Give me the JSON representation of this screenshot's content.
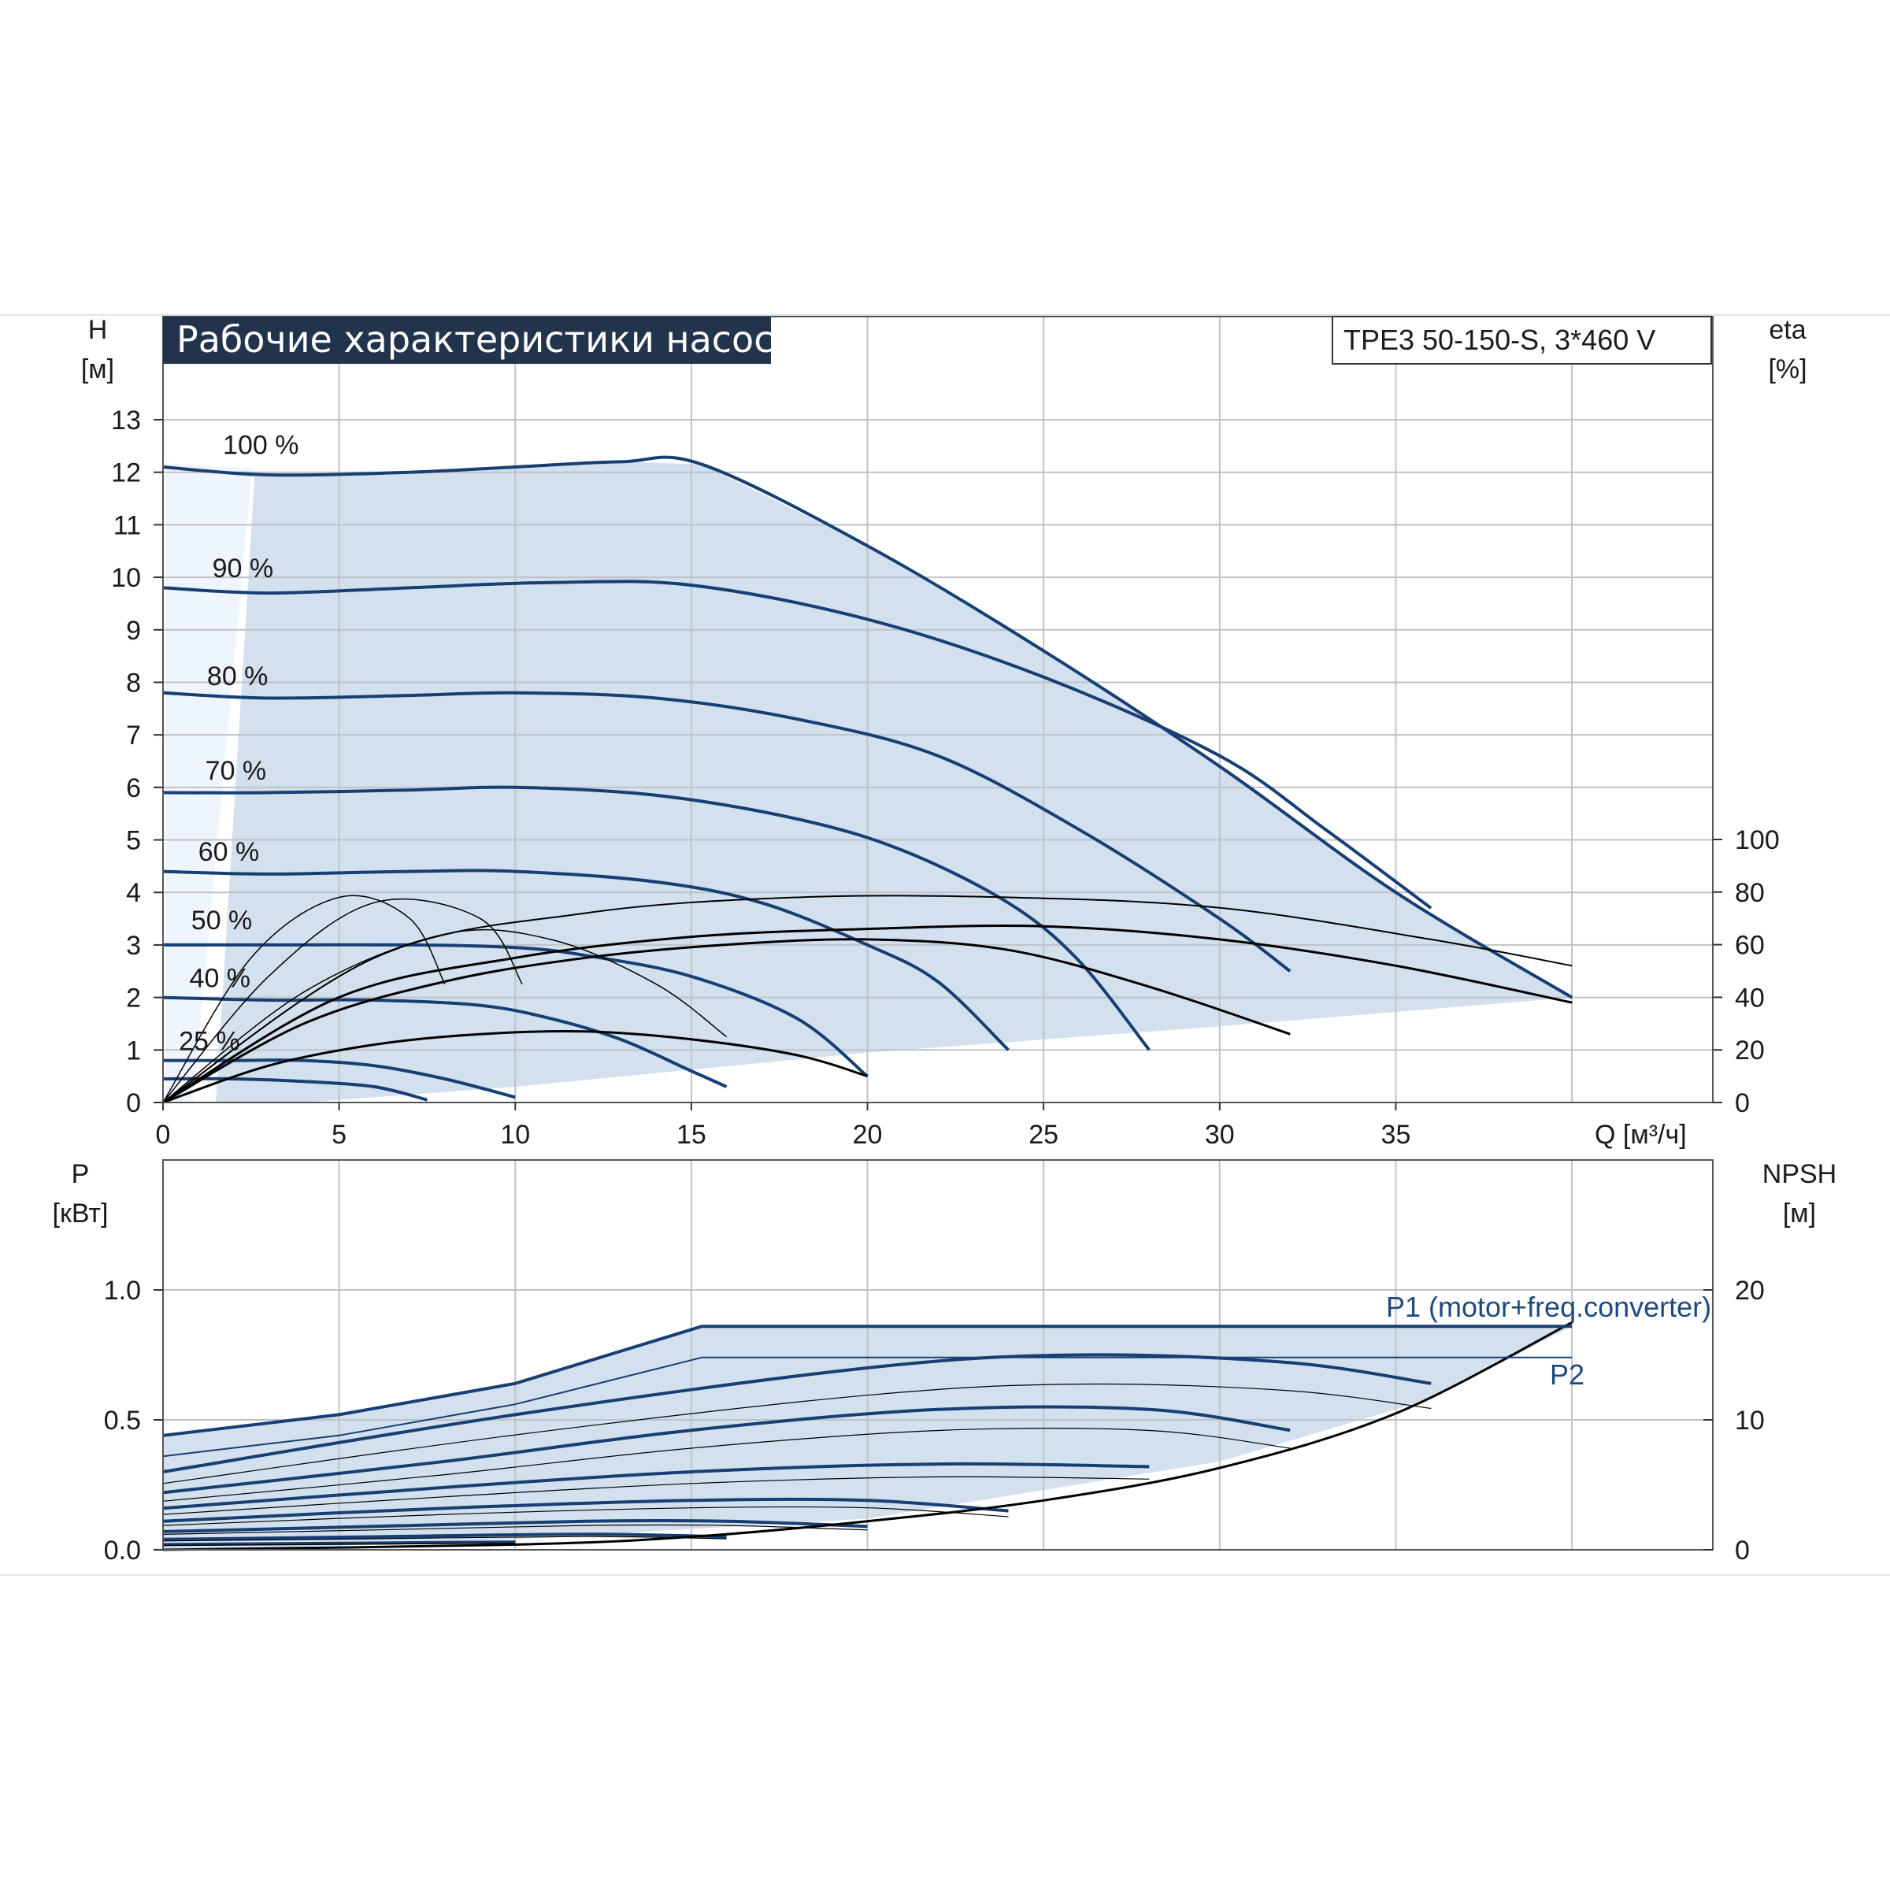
{
  "title": "Рабочие характеристики насоса",
  "model": "TPE3 50-150-S, 3*460 V",
  "colors": {
    "curve": "#173f73",
    "region": "#d3e0ee",
    "lowzone": "#eef5fc",
    "grid": "#bfc3c8",
    "efficiency": "#000000",
    "title_bg": "#22344c"
  },
  "chart_data": [
    {
      "type": "line",
      "name": "head",
      "left_axis": {
        "label_symbol": "H",
        "label_unit": "[м]",
        "min": 0,
        "max": 13,
        "ticks": [
          0,
          1,
          2,
          3,
          4,
          5,
          6,
          7,
          8,
          9,
          10,
          11,
          12,
          13
        ]
      },
      "right_axis": {
        "label_symbol": "eta",
        "label_unit": "[%]",
        "min": 0,
        "max": 100,
        "ticks": [
          0,
          20,
          40,
          60,
          80,
          100
        ]
      },
      "x_axis": {
        "label": "Q [м³/ч]",
        "min": 0,
        "max": 44,
        "ticks": [
          0,
          5,
          10,
          15,
          20,
          25,
          30,
          35
        ]
      },
      "grid": true,
      "speed_curves": [
        {
          "label": "100 %",
          "points": [
            [
              0,
              12.1
            ],
            [
              3,
              11.95
            ],
            [
              7,
              12.0
            ],
            [
              10,
              12.1
            ],
            [
              13,
              12.2
            ],
            [
              15.3,
              12.15
            ],
            [
              20,
              10.6
            ],
            [
              25,
              8.6
            ],
            [
              30,
              6.4
            ],
            [
              35,
              4.0
            ],
            [
              40,
              2.0
            ]
          ]
        },
        {
          "label": "90 %",
          "points": [
            [
              0,
              9.8
            ],
            [
              3,
              9.7
            ],
            [
              7,
              9.8
            ],
            [
              11,
              9.9
            ],
            [
              15,
              9.85
            ],
            [
              20,
              9.2
            ],
            [
              25,
              8.1
            ],
            [
              30,
              6.6
            ],
            [
              33,
              5.2
            ],
            [
              36,
              3.7
            ]
          ]
        },
        {
          "label": "80 %",
          "points": [
            [
              0,
              7.8
            ],
            [
              3,
              7.7
            ],
            [
              7,
              7.75
            ],
            [
              10,
              7.8
            ],
            [
              14,
              7.7
            ],
            [
              18,
              7.3
            ],
            [
              22,
              6.6
            ],
            [
              26,
              5.2
            ],
            [
              30,
              3.5
            ],
            [
              32,
              2.5
            ]
          ]
        },
        {
          "label": "70 %",
          "points": [
            [
              0,
              5.9
            ],
            [
              3,
              5.9
            ],
            [
              7,
              5.95
            ],
            [
              10,
              6.0
            ],
            [
              14,
              5.85
            ],
            [
              18,
              5.4
            ],
            [
              21,
              4.8
            ],
            [
              24,
              3.8
            ],
            [
              26,
              2.7
            ],
            [
              28,
              1.0
            ]
          ]
        },
        {
          "label": "60 %",
          "points": [
            [
              0,
              4.4
            ],
            [
              3,
              4.35
            ],
            [
              7,
              4.4
            ],
            [
              10,
              4.4
            ],
            [
              14,
              4.2
            ],
            [
              17,
              3.8
            ],
            [
              20,
              3.0
            ],
            [
              22,
              2.3
            ],
            [
              24,
              1.0
            ]
          ]
        },
        {
          "label": "50 %",
          "points": [
            [
              0,
              3.0
            ],
            [
              3,
              3.0
            ],
            [
              7,
              3.0
            ],
            [
              10,
              2.95
            ],
            [
              12,
              2.8
            ],
            [
              15,
              2.4
            ],
            [
              18,
              1.6
            ],
            [
              20,
              0.5
            ]
          ]
        },
        {
          "label": "40 %",
          "points": [
            [
              0,
              2.0
            ],
            [
              3,
              1.95
            ],
            [
              6,
              1.95
            ],
            [
              9,
              1.85
            ],
            [
              11,
              1.6
            ],
            [
              13,
              1.2
            ],
            [
              15,
              0.6
            ],
            [
              16,
              0.3
            ]
          ]
        },
        {
          "label": "25 %",
          "points": [
            [
              0,
              0.8
            ],
            [
              2,
              0.8
            ],
            [
              4,
              0.8
            ],
            [
              6,
              0.7
            ],
            [
              8,
              0.45
            ],
            [
              10,
              0.1
            ]
          ]
        },
        {
          "label": "",
          "points": [
            [
              0,
              0.45
            ],
            [
              2,
              0.45
            ],
            [
              4,
              0.4
            ],
            [
              6,
              0.3
            ],
            [
              7.5,
              0.05
            ]
          ]
        }
      ],
      "efficiency_curves": [
        {
          "points": [
            [
              0,
              0
            ],
            [
              3,
              14
            ],
            [
              6,
              22
            ],
            [
              9,
              26
            ],
            [
              12,
              27
            ],
            [
              15,
              24
            ],
            [
              18,
              18
            ],
            [
              20,
              10
            ]
          ]
        },
        {
          "points": [
            [
              0,
              0
            ],
            [
              4,
              30
            ],
            [
              8,
              46
            ],
            [
              12,
              55
            ],
            [
              16,
              60
            ],
            [
              20,
              62
            ],
            [
              24,
              58
            ],
            [
              28,
              44
            ],
            [
              32,
              26
            ]
          ]
        },
        {
          "points": [
            [
              0,
              0
            ],
            [
              5,
              40
            ],
            [
              10,
              55
            ],
            [
              15,
              63
            ],
            [
              20,
              66
            ],
            [
              25,
              67
            ],
            [
              30,
              62
            ],
            [
              35,
              52
            ],
            [
              40,
              38
            ]
          ]
        },
        {
          "points": [
            [
              0,
              0
            ],
            [
              6,
              55
            ],
            [
              12,
              72
            ],
            [
              18,
              78
            ],
            [
              24,
              78
            ],
            [
              30,
              74
            ],
            [
              36,
              62
            ],
            [
              40,
              52
            ]
          ]
        }
      ]
    },
    {
      "type": "line",
      "name": "power",
      "left_axis": {
        "label_symbol": "P",
        "label_unit": "[кВт]",
        "min": 0,
        "max": 1.5,
        "ticks": [
          "0.0",
          "0.5",
          "1.0"
        ]
      },
      "right_axis": {
        "label_symbol": "NPSH",
        "label_unit": "[м]",
        "min": 0,
        "max": 30,
        "ticks": [
          0,
          10,
          20
        ]
      },
      "x_axis": {
        "min": 0,
        "max": 44
      },
      "grid": true,
      "series": [
        {
          "name": "P1 (motor+freq.converter)",
          "points": [
            [
              0,
              0.44
            ],
            [
              5,
              0.52
            ],
            [
              10,
              0.64
            ],
            [
              15.3,
              0.86
            ],
            [
              25,
              0.86
            ],
            [
              40,
              0.86
            ]
          ]
        },
        {
          "name": "P2",
          "points": [
            [
              0,
              0.36
            ],
            [
              5,
              0.44
            ],
            [
              10,
              0.56
            ],
            [
              15.3,
              0.74
            ],
            [
              25,
              0.74
            ],
            [
              40,
              0.74
            ]
          ]
        }
      ],
      "speed_power_curves": [
        {
          "points": [
            [
              0,
              0.3
            ],
            [
              10,
              0.52
            ],
            [
              20,
              0.7
            ],
            [
              26,
              0.75
            ],
            [
              32,
              0.72
            ],
            [
              36,
              0.64
            ]
          ]
        },
        {
          "points": [
            [
              0,
              0.22
            ],
            [
              8,
              0.34
            ],
            [
              15,
              0.46
            ],
            [
              22,
              0.54
            ],
            [
              28,
              0.54
            ],
            [
              32,
              0.46
            ]
          ]
        },
        {
          "points": [
            [
              0,
              0.16
            ],
            [
              8,
              0.24
            ],
            [
              15,
              0.3
            ],
            [
              22,
              0.33
            ],
            [
              28,
              0.32
            ]
          ]
        },
        {
          "points": [
            [
              0,
              0.11
            ],
            [
              8,
              0.16
            ],
            [
              15,
              0.19
            ],
            [
              20,
              0.19
            ],
            [
              24,
              0.15
            ]
          ]
        },
        {
          "points": [
            [
              0,
              0.07
            ],
            [
              6,
              0.09
            ],
            [
              12,
              0.11
            ],
            [
              16,
              0.11
            ],
            [
              20,
              0.09
            ]
          ]
        },
        {
          "points": [
            [
              0,
              0.04
            ],
            [
              6,
              0.05
            ],
            [
              12,
              0.06
            ],
            [
              16,
              0.05
            ]
          ]
        },
        {
          "points": [
            [
              0,
              0.02
            ],
            [
              5,
              0.025
            ],
            [
              10,
              0.03
            ]
          ]
        }
      ],
      "npsh_curve": {
        "points": [
          [
            0,
            0
          ],
          [
            10,
            0.4
          ],
          [
            15,
            1.0
          ],
          [
            20,
            2.2
          ],
          [
            25,
            3.8
          ],
          [
            30,
            6.3
          ],
          [
            35,
            10.5
          ],
          [
            40,
            17.5
          ]
        ]
      }
    }
  ]
}
